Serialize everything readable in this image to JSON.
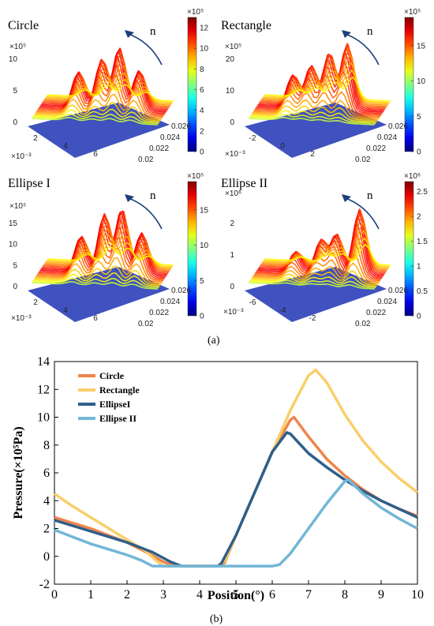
{
  "panel_a": {
    "caption": "(a)",
    "plots": [
      {
        "title": "Circle",
        "arrow_label": "n",
        "z_exponent": "×10⁵",
        "x_exponent": "×10⁻³",
        "colorbar_exponent": "×10⁵",
        "colorbar_ticks": [
          "0",
          "2",
          "4",
          "6",
          "8",
          "10",
          "12"
        ],
        "colorbar_max": 13,
        "z_ticks": [
          "0",
          "5",
          "10"
        ],
        "x_ticks": [
          "2",
          "4",
          "6"
        ],
        "y_ticks": [
          "0.02",
          "0.022",
          "0.024",
          "0.026"
        ]
      },
      {
        "title": "Rectangle",
        "arrow_label": "n",
        "z_exponent": "×10⁵",
        "x_exponent": "×10⁻³",
        "colorbar_exponent": "×10⁵",
        "colorbar_ticks": [
          "0",
          "5",
          "10",
          "15"
        ],
        "colorbar_max": 19,
        "z_ticks": [
          "0",
          "10",
          "20"
        ],
        "x_ticks": [
          "-2",
          "0",
          "2"
        ],
        "y_ticks": [
          "0.02",
          "0.022",
          "0.024",
          "0.026"
        ]
      },
      {
        "title": "Ellipse I",
        "arrow_label": "n",
        "z_exponent": "×10⁵",
        "x_exponent": "×10⁻³",
        "colorbar_exponent": "×10⁵",
        "colorbar_ticks": [
          "0",
          "5",
          "10",
          "15"
        ],
        "colorbar_max": 19,
        "z_ticks": [
          "0",
          "5",
          "10",
          "15"
        ],
        "x_ticks": [
          "2",
          "4",
          "6"
        ],
        "y_ticks": [
          "0.02",
          "0.022",
          "0.024",
          "0.026"
        ]
      },
      {
        "title": "Ellipse II",
        "arrow_label": "n",
        "z_exponent": "×10⁶",
        "x_exponent": "×10⁻³",
        "colorbar_exponent": "×10⁶",
        "colorbar_ticks": [
          "0",
          "0.5",
          "1",
          "1.5",
          "2",
          "2.5"
        ],
        "colorbar_max": 2.7,
        "z_ticks": [
          "0",
          "1",
          "2"
        ],
        "x_ticks": [
          "-6",
          "-4",
          "-2"
        ],
        "y_ticks": [
          "0.02",
          "0.022",
          "0.024",
          "0.026"
        ]
      }
    ]
  },
  "chart_data": {
    "type": "line",
    "caption": "(b)",
    "xlabel": "Position(°)",
    "ylabel": "Pressure(×10⁵Pa)",
    "xlim": [
      0,
      10
    ],
    "ylim": [
      -2,
      14
    ],
    "xticks": [
      0,
      1,
      2,
      3,
      4,
      5,
      6,
      7,
      8,
      9,
      10
    ],
    "yticks": [
      -2,
      0,
      2,
      4,
      6,
      8,
      10,
      12,
      14
    ],
    "legend_position": "top-left",
    "series": [
      {
        "name": "Circle",
        "color": "#f0844a",
        "x": [
          0,
          1,
          2,
          2.6,
          3.0,
          3.3,
          4.6,
          4.7,
          5.0,
          5.5,
          6.0,
          6.5,
          6.6,
          7.0,
          7.5,
          8,
          8.5,
          9,
          9.5,
          10
        ],
        "y": [
          2.8,
          2.0,
          1.0,
          0.2,
          -0.4,
          -0.7,
          -0.7,
          -0.4,
          1.5,
          4.5,
          7.5,
          9.8,
          10.0,
          8.6,
          7.0,
          5.8,
          4.8,
          4.0,
          3.4,
          2.9
        ]
      },
      {
        "name": "Rectangle",
        "color": "#f9cf6a",
        "x": [
          0,
          0.5,
          1,
          1.5,
          2,
          2.5,
          2.8,
          3.0,
          4.5,
          4.7,
          5.0,
          5.5,
          6.0,
          6.5,
          7.0,
          7.2,
          7.5,
          8,
          8.5,
          9,
          9.5,
          10
        ],
        "y": [
          4.5,
          3.6,
          2.8,
          2.0,
          1.2,
          0.4,
          -0.3,
          -0.7,
          -0.7,
          -0.3,
          1.5,
          4.5,
          7.5,
          10.5,
          13.0,
          13.4,
          12.5,
          10.2,
          8.3,
          6.8,
          5.6,
          4.6
        ]
      },
      {
        "name": "EllipseI",
        "color": "#2f5f8a",
        "x": [
          0,
          1,
          2,
          2.7,
          3.2,
          3.5,
          4.5,
          4.6,
          5.0,
          5.5,
          6.0,
          6.4,
          6.5,
          7.0,
          7.5,
          8,
          8.5,
          9,
          9.5,
          10
        ],
        "y": [
          2.6,
          1.8,
          1.0,
          0.3,
          -0.4,
          -0.7,
          -0.7,
          -0.5,
          1.5,
          4.5,
          7.5,
          8.9,
          8.8,
          7.4,
          6.4,
          5.5,
          4.7,
          4.0,
          3.4,
          2.8
        ]
      },
      {
        "name": "Ellipse II",
        "color": "#72b6d6",
        "x": [
          0,
          0.5,
          1,
          1.5,
          2,
          2.4,
          2.7,
          3,
          4,
          5,
          6,
          6.2,
          6.5,
          7.0,
          7.5,
          8.0,
          8.1,
          8.5,
          9,
          9.5,
          10
        ],
        "y": [
          1.9,
          1.4,
          0.9,
          0.5,
          0.1,
          -0.3,
          -0.7,
          -0.7,
          -0.7,
          -0.7,
          -0.7,
          -0.6,
          0.2,
          2.0,
          3.8,
          5.4,
          5.5,
          4.5,
          3.5,
          2.7,
          2.0
        ]
      }
    ]
  }
}
